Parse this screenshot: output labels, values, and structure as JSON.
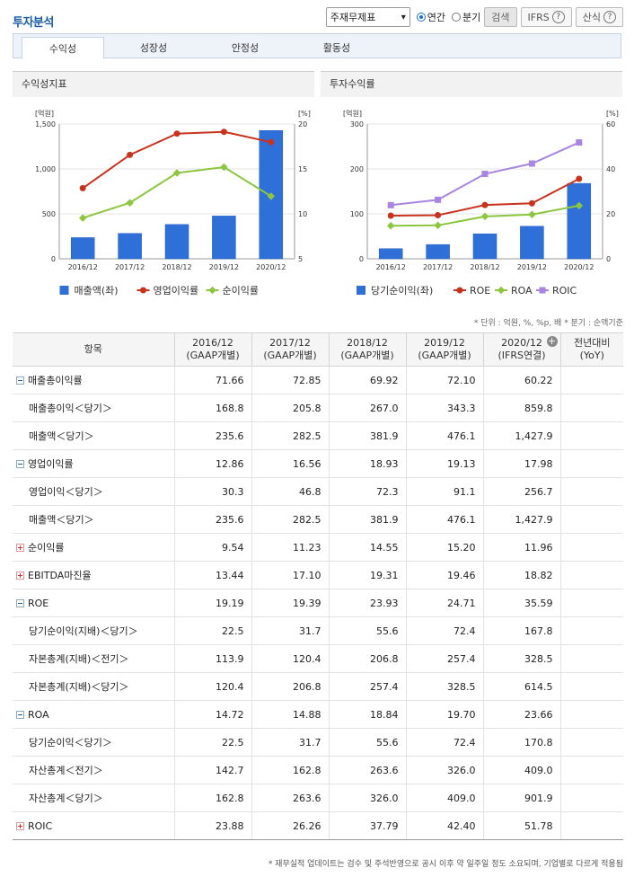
{
  "header": {
    "title": "투자분석",
    "select_value": "주재무제표",
    "radio_annual": "연간",
    "radio_quarter": "분기",
    "search_label": "검색",
    "ifrs_label": "IFRS",
    "formula_label": "산식",
    "help_glyph": "?"
  },
  "tabs": [
    {
      "label": "수익성"
    },
    {
      "label": "성장성"
    },
    {
      "label": "안정성"
    },
    {
      "label": "활동성"
    }
  ],
  "charts": {
    "left_title": "수익성지표",
    "right_title": "투자수익률"
  },
  "chart_data": [
    {
      "type": "bar",
      "title": "수익성지표",
      "categories": [
        "2016/12",
        "2017/12",
        "2018/12",
        "2019/12",
        "2020/12"
      ],
      "left_unit": "[억원]",
      "right_unit": "[%]",
      "left_ticks": [
        "0",
        "500",
        "1,000",
        "1,500"
      ],
      "right_ticks": [
        "5",
        "10",
        "15",
        "20"
      ],
      "ylim_left": [
        0,
        1500
      ],
      "ylim_right": [
        5,
        20
      ],
      "series": [
        {
          "name": "매출액(좌)",
          "kind": "bar",
          "axis": "left",
          "color": "#2f6fd8",
          "values": [
            235.6,
            282.5,
            381.9,
            476.1,
            1427.9
          ]
        },
        {
          "name": "영업이익률",
          "kind": "line",
          "axis": "right",
          "color": "#c8331e",
          "values": [
            12.86,
            16.56,
            18.93,
            19.13,
            17.98
          ]
        },
        {
          "name": "순이익률",
          "kind": "line",
          "axis": "right",
          "color": "#8cc63f",
          "values": [
            9.54,
            11.23,
            14.55,
            15.2,
            11.96
          ]
        }
      ]
    },
    {
      "type": "bar",
      "title": "투자수익률",
      "categories": [
        "2016/12",
        "2017/12",
        "2018/12",
        "2019/12",
        "2020/12"
      ],
      "left_unit": "[억원]",
      "right_unit": "[%]",
      "left_ticks": [
        "0",
        "100",
        "200",
        "300"
      ],
      "right_ticks": [
        "0",
        "20",
        "40",
        "60"
      ],
      "ylim_left": [
        0,
        300
      ],
      "ylim_right": [
        0,
        60
      ],
      "series": [
        {
          "name": "당기순이익(좌)",
          "kind": "bar",
          "axis": "left",
          "color": "#2f6fd8",
          "values": [
            22.5,
            31.7,
            55.6,
            72.4,
            167.8
          ]
        },
        {
          "name": "ROE",
          "kind": "line",
          "axis": "right",
          "color": "#c8331e",
          "values": [
            19.19,
            19.39,
            23.93,
            24.71,
            35.59
          ]
        },
        {
          "name": "ROA",
          "kind": "line",
          "axis": "right",
          "color": "#8cc63f",
          "values": [
            14.72,
            14.88,
            18.84,
            19.7,
            23.66
          ]
        },
        {
          "name": "ROIC",
          "kind": "line",
          "axis": "right",
          "color": "#a785e0",
          "values": [
            23.88,
            26.26,
            37.79,
            42.4,
            51.78
          ]
        }
      ]
    }
  ],
  "table": {
    "note": "* 단위 : 억원, %, %p, 배    * 분기 : 순액기준",
    "headers": [
      {
        "l1": "항목",
        "l2": ""
      },
      {
        "l1": "2016/12",
        "l2": "(GAAP개별)"
      },
      {
        "l1": "2017/12",
        "l2": "(GAAP개별)"
      },
      {
        "l1": "2018/12",
        "l2": "(GAAP개별)"
      },
      {
        "l1": "2019/12",
        "l2": "(GAAP개별)"
      },
      {
        "l1": "2020/12",
        "l2": "(IFRS연결)"
      },
      {
        "l1": "전년대비",
        "l2": "(YoY)"
      }
    ],
    "add_column_glyph": "+",
    "rows": [
      {
        "label": "매출총이익률",
        "kind": "minus",
        "values": [
          "71.66",
          "72.85",
          "69.92",
          "72.10",
          "60.22",
          ""
        ]
      },
      {
        "label": "매출총이익＜당기＞",
        "kind": "sub",
        "values": [
          "168.8",
          "205.8",
          "267.0",
          "343.3",
          "859.8",
          ""
        ]
      },
      {
        "label": "매출액＜당기＞",
        "kind": "sub",
        "values": [
          "235.6",
          "282.5",
          "381.9",
          "476.1",
          "1,427.9",
          ""
        ]
      },
      {
        "label": "영업이익률",
        "kind": "minus",
        "values": [
          "12.86",
          "16.56",
          "18.93",
          "19.13",
          "17.98",
          ""
        ]
      },
      {
        "label": "영업이익＜당기＞",
        "kind": "sub",
        "values": [
          "30.3",
          "46.8",
          "72.3",
          "91.1",
          "256.7",
          ""
        ]
      },
      {
        "label": "매출액＜당기＞",
        "kind": "sub",
        "values": [
          "235.6",
          "282.5",
          "381.9",
          "476.1",
          "1,427.9",
          ""
        ]
      },
      {
        "label": "순이익률",
        "kind": "plus",
        "values": [
          "9.54",
          "11.23",
          "14.55",
          "15.20",
          "11.96",
          ""
        ]
      },
      {
        "label": "EBITDA마진율",
        "kind": "plus",
        "values": [
          "13.44",
          "17.10",
          "19.31",
          "19.46",
          "18.82",
          ""
        ]
      },
      {
        "label": "ROE",
        "kind": "minus",
        "values": [
          "19.19",
          "19.39",
          "23.93",
          "24.71",
          "35.59",
          ""
        ]
      },
      {
        "label": "당기순이익(지배)＜당기＞",
        "kind": "sub",
        "values": [
          "22.5",
          "31.7",
          "55.6",
          "72.4",
          "167.8",
          ""
        ]
      },
      {
        "label": "자본총계(지배)＜전기＞",
        "kind": "sub",
        "values": [
          "113.9",
          "120.4",
          "206.8",
          "257.4",
          "328.5",
          ""
        ]
      },
      {
        "label": "자본총계(지배)＜당기＞",
        "kind": "sub",
        "values": [
          "120.4",
          "206.8",
          "257.4",
          "328.5",
          "614.5",
          ""
        ]
      },
      {
        "label": "ROA",
        "kind": "minus",
        "values": [
          "14.72",
          "14.88",
          "18.84",
          "19.70",
          "23.66",
          ""
        ]
      },
      {
        "label": "당기순이익＜당기＞",
        "kind": "sub",
        "values": [
          "22.5",
          "31.7",
          "55.6",
          "72.4",
          "170.8",
          ""
        ]
      },
      {
        "label": "자산총계＜전기＞",
        "kind": "sub",
        "values": [
          "142.7",
          "162.8",
          "263.6",
          "326.0",
          "409.0",
          ""
        ]
      },
      {
        "label": "자산총계＜당기＞",
        "kind": "sub",
        "values": [
          "162.8",
          "263.6",
          "326.0",
          "409.0",
          "901.9",
          ""
        ]
      },
      {
        "label": "ROIC",
        "kind": "plus",
        "values": [
          "23.88",
          "26.26",
          "37.79",
          "42.40",
          "51.78",
          ""
        ]
      }
    ]
  },
  "footer": "* 재무실적 업데이트는 검수 및 주석반영으로 공시 이후 약 일주일 정도 소요되며, 기업별로 다르게 적용됨"
}
